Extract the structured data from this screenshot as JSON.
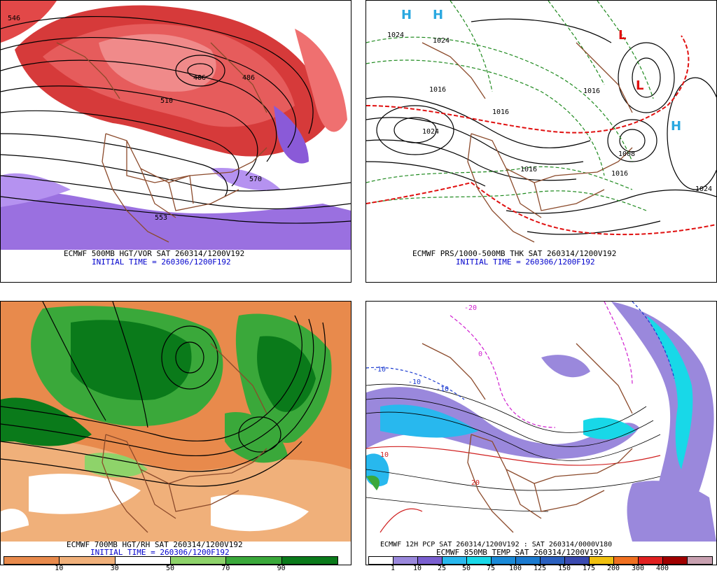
{
  "panels": {
    "tl": {
      "title": "ECMWF 500MB HGT/VOR SAT 260314/1200V192",
      "initial": "INITIAL TIME = 260306/1200F192",
      "labels": [
        "546",
        "486",
        "510",
        "570",
        "553",
        "486"
      ]
    },
    "tr": {
      "title": "ECMWF PRS/1000-500MB THK SAT 260314/1200V192",
      "initial": "INITIAL TIME = 260306/1200F192",
      "labels": [
        "1024",
        "1016",
        "1016",
        "1024",
        "1016",
        "1016",
        "1024",
        "1016",
        "1024",
        "1008"
      ],
      "highs": [
        "H",
        "H",
        "H"
      ],
      "lows": [
        "L",
        "L"
      ]
    },
    "bl": {
      "title": "ECMWF 700MB HGT/RH SAT 260314/1200V192",
      "initial": "INITIAL TIME = 260306/1200F192",
      "scale": {
        "colors": [
          "#e88a4c",
          "#f0b07a",
          "#ffffff",
          "#8ed36a",
          "#3aa83a",
          "#0a7a1a"
        ],
        "ticks": [
          "10",
          "30",
          "50",
          "70",
          "90"
        ]
      }
    },
    "br": {
      "title": "ECMWF 12H PCP SAT 260314/1200V192 : SAT 260314/0000V180",
      "subtitle": "ECMWF 850MB TEMP SAT 260314/1200V192",
      "labels": [
        "-20",
        "-10",
        "-10",
        "-10",
        "0",
        "10",
        "20"
      ],
      "scale": {
        "colors": [
          "#ffffff",
          "#9a88dc",
          "#7a5fd0",
          "#28b8ee",
          "#18d8e8",
          "#1a8ad8",
          "#1a7ad0",
          "#2a60c0",
          "#3a4ab0",
          "#f0c010",
          "#f07020",
          "#e02020",
          "#a00000",
          "#c8a0b0"
        ],
        "ticks": [
          "1",
          "10",
          "25",
          "50",
          "75",
          "100",
          "125",
          "150",
          "175",
          "200",
          "300",
          "400"
        ]
      }
    }
  }
}
